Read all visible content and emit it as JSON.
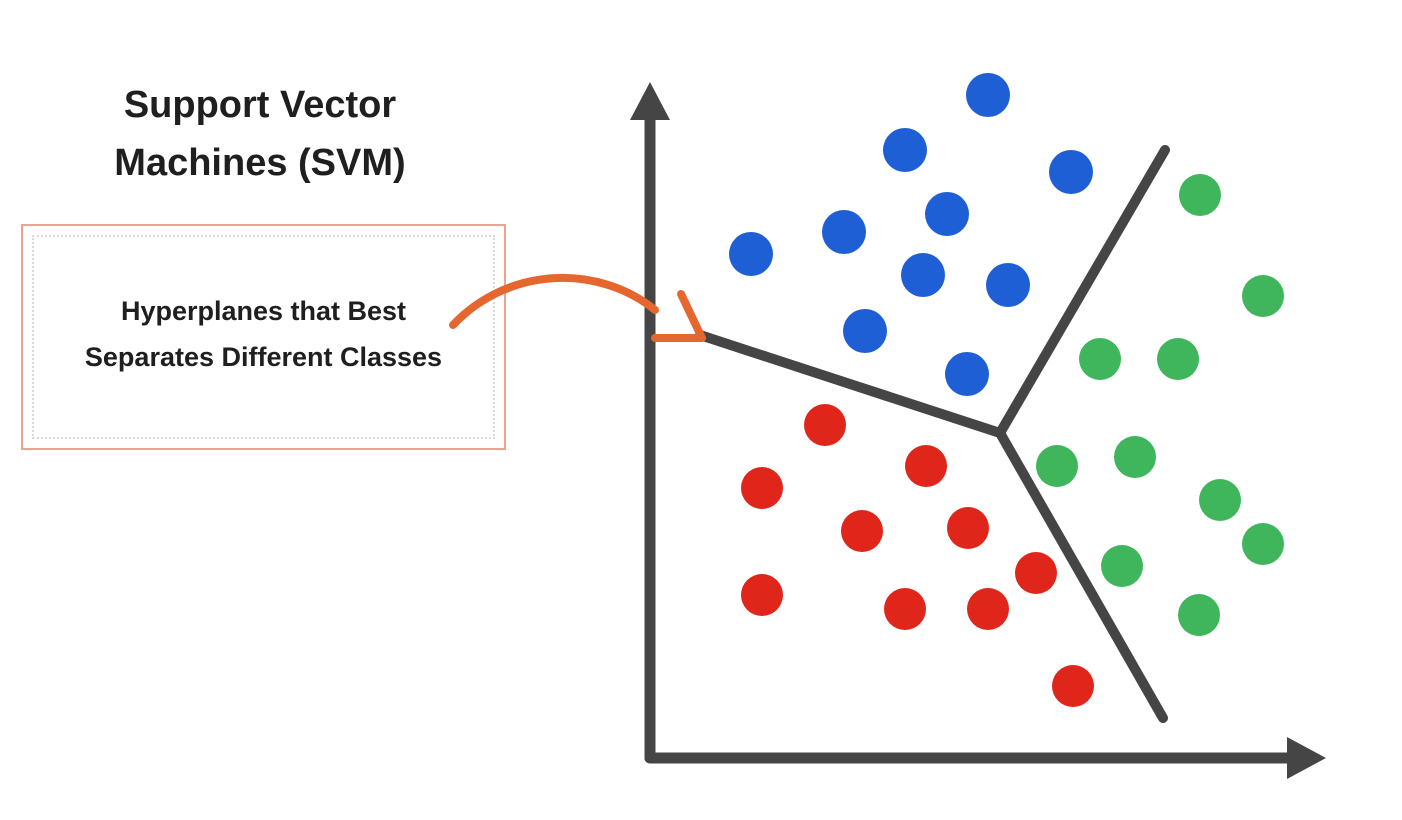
{
  "title": {
    "line1": "Support Vector",
    "line2": "Machines (SVM)"
  },
  "callout": {
    "line1": "Hyperplanes that Best",
    "line2": "Separates Different Classes"
  },
  "colors": {
    "blue": "#1e5fd6",
    "red": "#e0251b",
    "green": "#3fb55c",
    "axis": "#454545",
    "arrow": "#e5672f",
    "callout_border": "#e8a490"
  },
  "classes": [
    "blue",
    "red",
    "green"
  ]
}
